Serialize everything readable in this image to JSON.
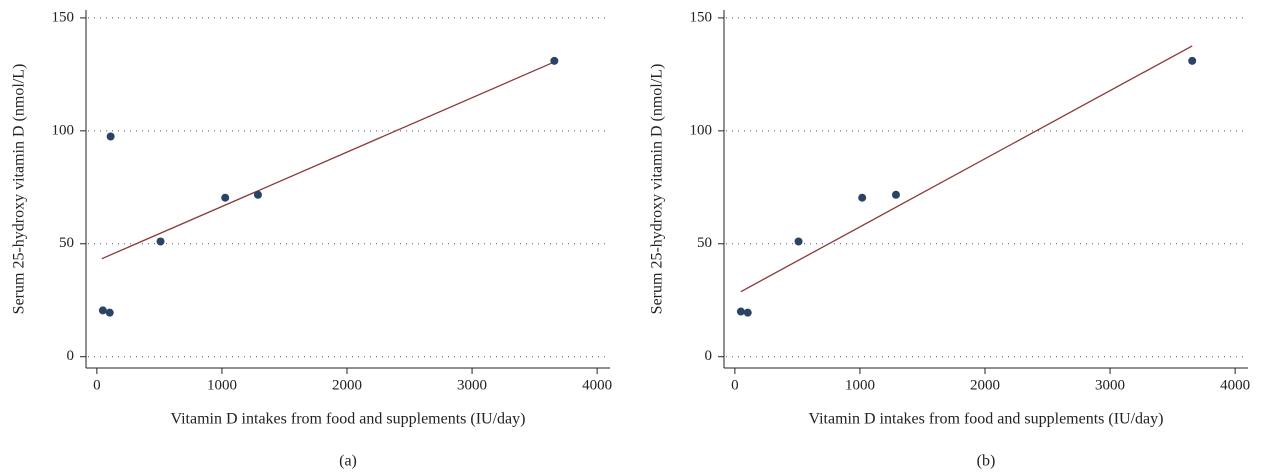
{
  "chart_data": [
    {
      "type": "scatter",
      "caption": "(a)",
      "xlabel": "Vitamin D intakes from food and supplements (IU/day)",
      "ylabel": "Serum 25-hydroxy vitamin D (nmol/L)",
      "x": [
        48,
        110,
        103,
        509,
        1026,
        1288,
        3658
      ],
      "values": [
        20.5,
        97.5,
        19.5,
        51,
        70.4,
        71.7,
        131
      ],
      "color": "#2b4466",
      "fit": {
        "x": [
          40,
          3658
        ],
        "values": [
          43.4,
          130.5
        ],
        "color": "#8b3a3a"
      },
      "xlim": [
        -87,
        4103
      ],
      "ylim": [
        -5,
        153.5
      ],
      "xticks": [
        0,
        1000,
        2000,
        3000,
        4000
      ],
      "yticks": [
        0,
        50,
        100,
        150
      ],
      "grid": true
    },
    {
      "type": "scatter",
      "caption": "(b)",
      "xlabel": "Vitamin D intakes from food and supplements (IU/day)",
      "ylabel": "Serum 25-hydroxy vitamin D (nmol/L)",
      "x": [
        48,
        103,
        509,
        1018,
        1288,
        3657
      ],
      "values": [
        20,
        19.5,
        51,
        70.4,
        71.7,
        131
      ],
      "color": "#2b4466",
      "fit": {
        "x": [
          48,
          3657
        ],
        "values": [
          28.8,
          137.6
        ],
        "color": "#8b3a3a"
      },
      "xlim": [
        -87,
        4103
      ],
      "ylim": [
        -5,
        153.5
      ],
      "xticks": [
        0,
        1000,
        2000,
        3000,
        4000
      ],
      "yticks": [
        0,
        50,
        100,
        150
      ],
      "grid": true
    }
  ]
}
